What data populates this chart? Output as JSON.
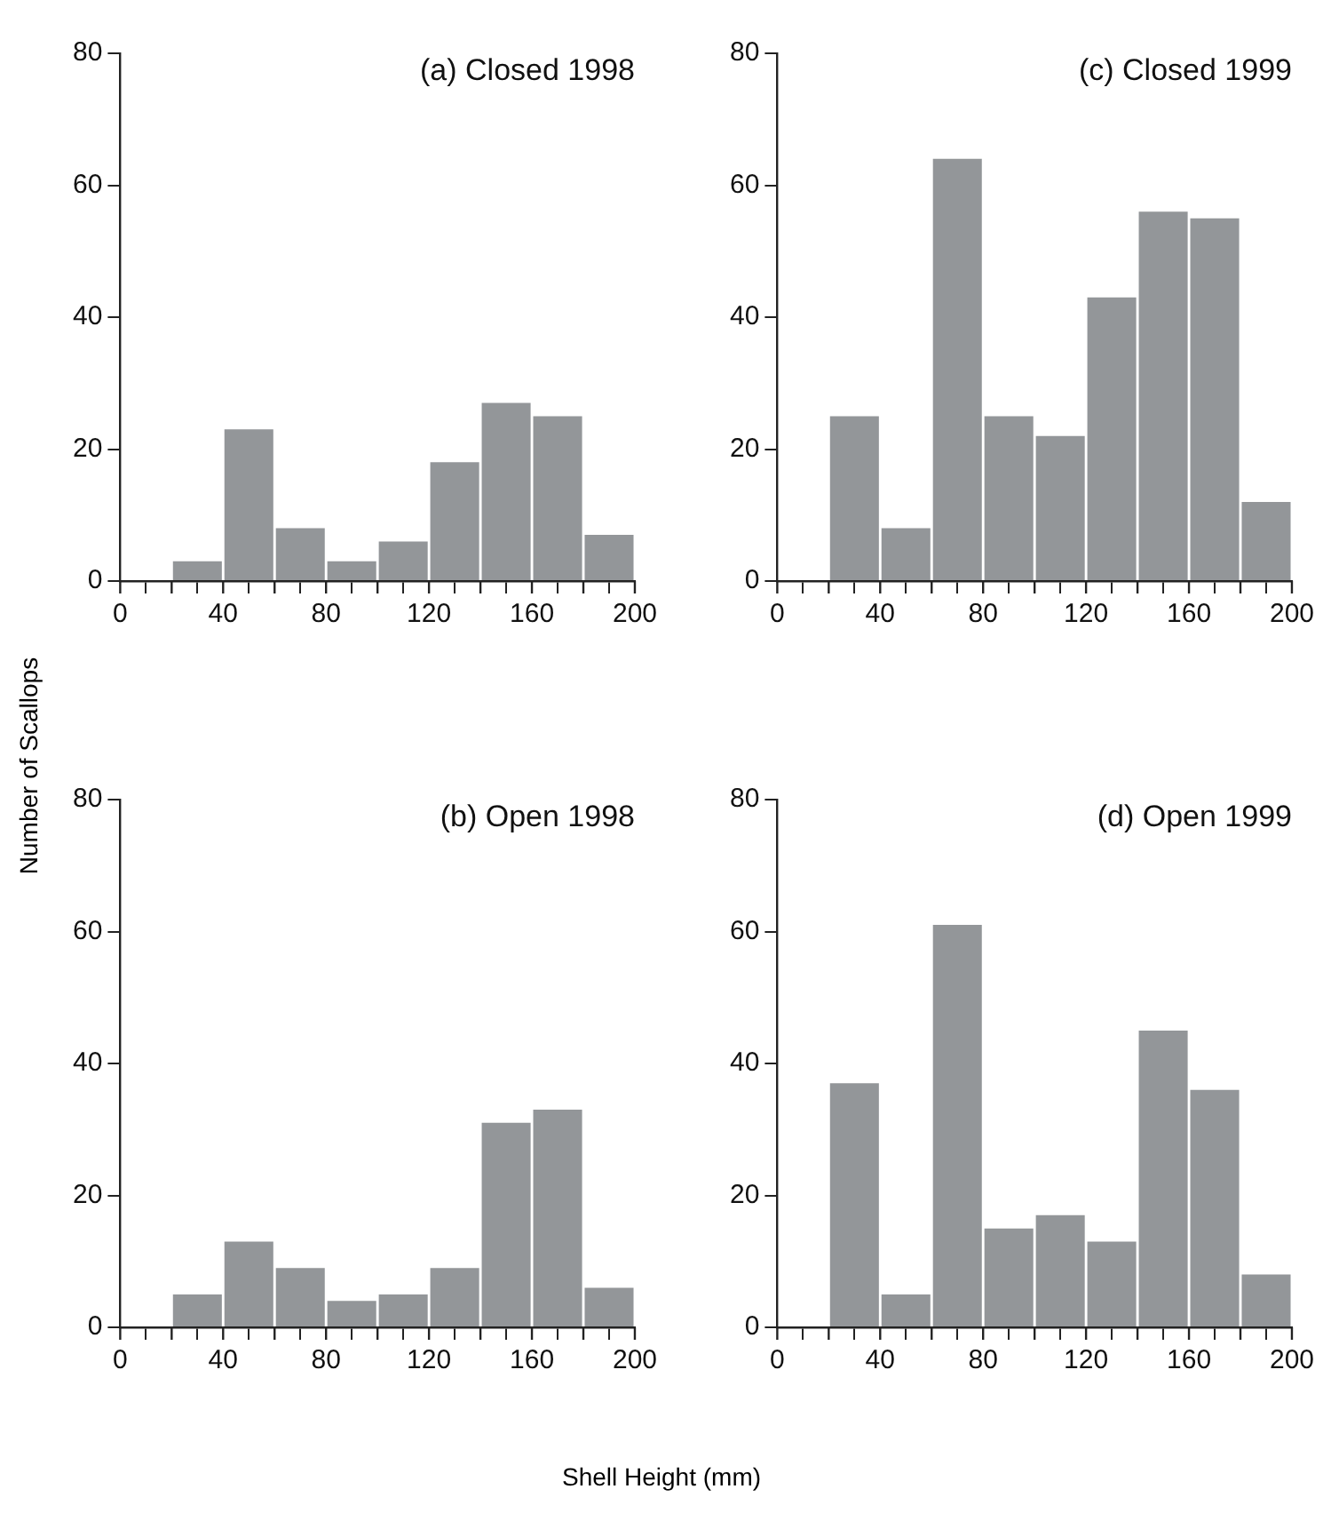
{
  "chart_data": [
    {
      "type": "histogram",
      "title": "(a) Closed 1998",
      "ylabel": "Number of Scallops",
      "bins": [
        20,
        40,
        60,
        80,
        100,
        120,
        140,
        160,
        180,
        200
      ],
      "values": [
        3,
        23,
        8,
        3,
        6,
        18,
        27,
        25,
        7
      ],
      "color": "#939699",
      "xlim": [
        0,
        200
      ],
      "ylim": [
        0,
        80
      ],
      "xticks": [
        0,
        {
          "value": 20,
          "label": null
        },
        40,
        {
          "value": 60,
          "label": null
        },
        80,
        {
          "value": 100,
          "label": null
        },
        120,
        {
          "value": 140,
          "label": null
        },
        160,
        {
          "value": 180,
          "label": null
        },
        200
      ],
      "yticks": [
        0,
        20,
        40,
        60,
        80
      ]
    },
    {
      "type": "histogram",
      "title": "(c) Closed 1999",
      "bins": [
        20,
        40,
        60,
        80,
        100,
        120,
        140,
        160,
        180,
        200
      ],
      "values": [
        25,
        8,
        64,
        25,
        22,
        43,
        56,
        55,
        12
      ],
      "color": "#939699",
      "xlim": [
        0,
        200
      ],
      "ylim": [
        0,
        80
      ],
      "xticks": [
        0,
        {
          "value": 20,
          "label": null
        },
        40,
        {
          "value": 60,
          "label": null
        },
        80,
        {
          "value": 100,
          "label": null
        },
        120,
        {
          "value": 140,
          "label": null
        },
        160,
        {
          "value": 180,
          "label": null
        },
        200
      ],
      "yticks": [
        0,
        20,
        40,
        60,
        80
      ]
    },
    {
      "type": "histogram",
      "title": "(b) Open 1998",
      "bins": [
        20,
        40,
        60,
        80,
        100,
        120,
        140,
        160,
        180,
        200
      ],
      "values": [
        5,
        13,
        9,
        4,
        5,
        9,
        31,
        33,
        6
      ],
      "color": "#939699",
      "xlim": [
        0,
        200
      ],
      "ylim": [
        0,
        80
      ],
      "xticks": [
        0,
        {
          "value": 20,
          "label": null
        },
        40,
        {
          "value": 60,
          "label": null
        },
        80,
        {
          "value": 100,
          "label": null
        },
        120,
        {
          "value": 140,
          "label": null
        },
        160,
        {
          "value": 180,
          "label": null
        },
        200
      ],
      "yticks": [
        0,
        20,
        40,
        60,
        80
      ]
    },
    {
      "type": "histogram",
      "title": "(d) Open 1999",
      "xlabel": "Shell Height (mm)",
      "bins": [
        20,
        40,
        60,
        80,
        100,
        120,
        140,
        160,
        180,
        200
      ],
      "values": [
        37,
        5,
        61,
        15,
        17,
        13,
        45,
        36,
        8
      ],
      "color": "#939699",
      "xlim": [
        0,
        200
      ],
      "ylim": [
        0,
        80
      ],
      "xticks": [
        0,
        {
          "value": 20,
          "label": null
        },
        40,
        {
          "value": 60,
          "label": null
        },
        80,
        {
          "value": 100,
          "label": null
        },
        120,
        {
          "value": 140,
          "label": null
        },
        160,
        {
          "value": 180,
          "label": null
        },
        200
      ],
      "yticks": [
        0,
        20,
        40,
        60,
        80
      ]
    }
  ]
}
